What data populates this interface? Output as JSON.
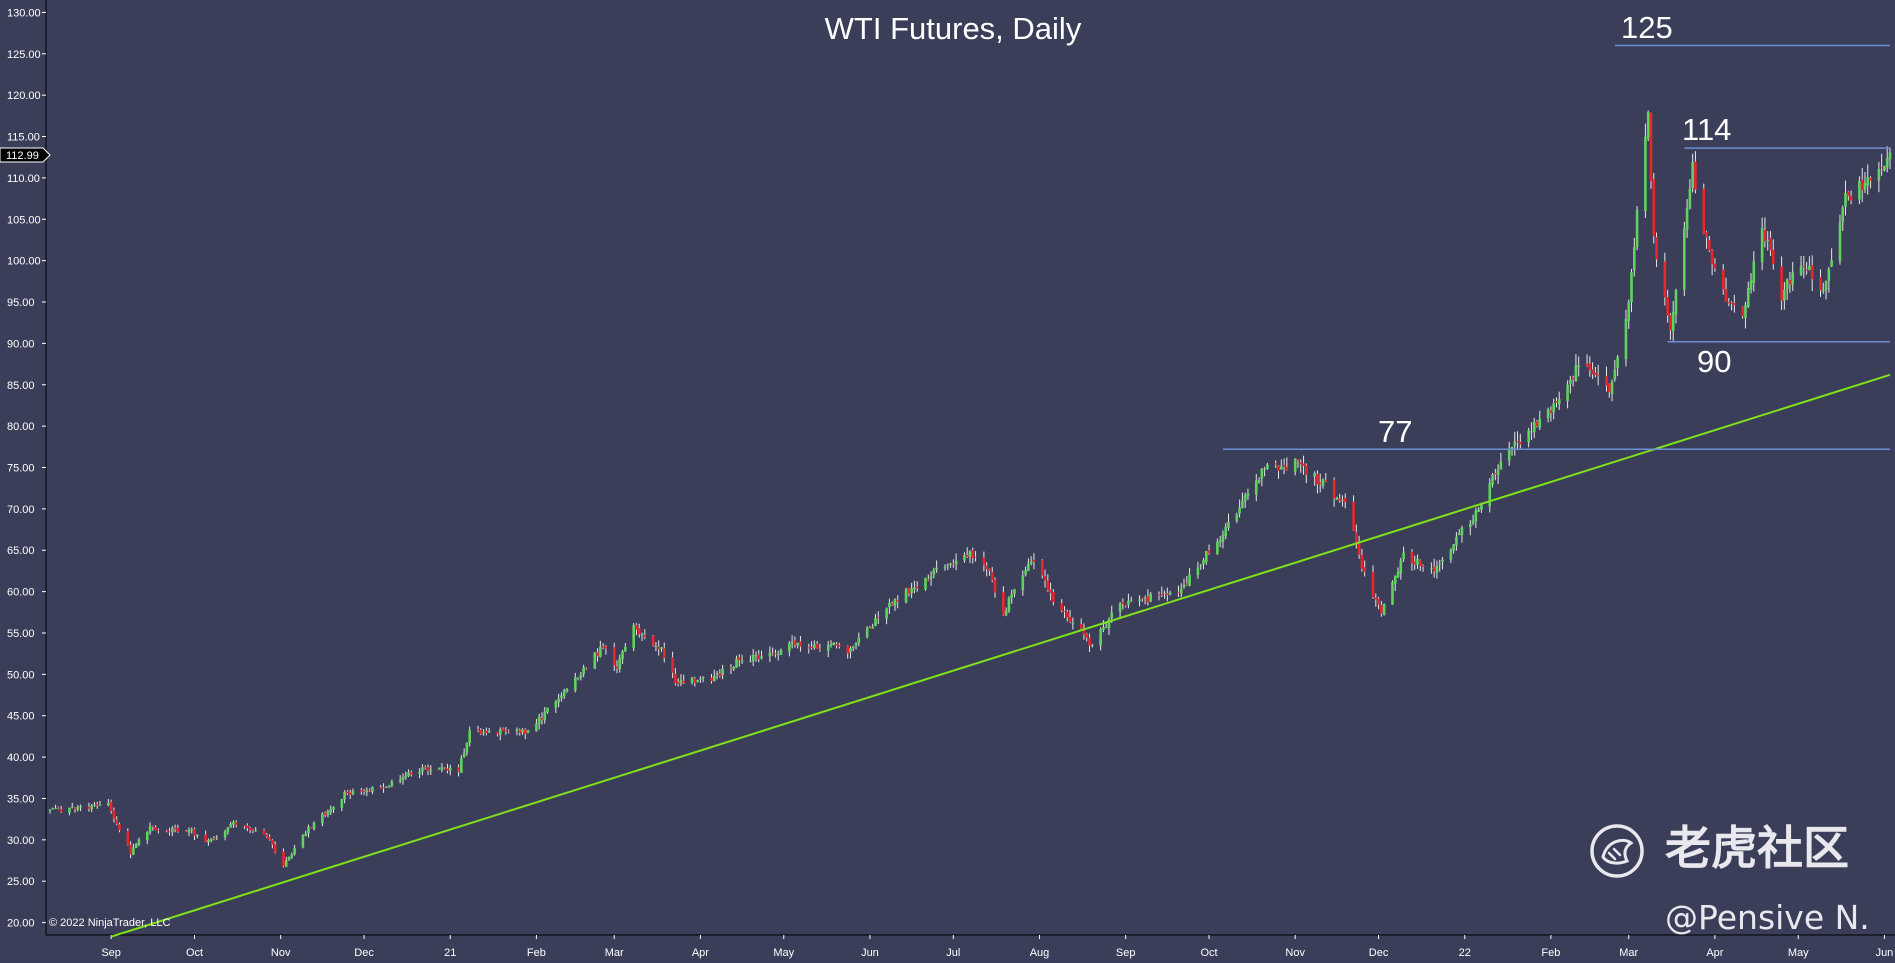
{
  "chart_data": {
    "type": "candlestick",
    "title": "WTI Futures, Daily",
    "ylim": [
      18.5,
      131.5
    ],
    "y_ticks": [
      "20.00",
      "25.00",
      "30.00",
      "35.00",
      "40.00",
      "45.00",
      "50.00",
      "55.00",
      "60.00",
      "65.00",
      "70.00",
      "75.00",
      "80.00",
      "85.00",
      "90.00",
      "95.00",
      "100.00",
      "105.00",
      "110.00",
      "115.00",
      "120.00",
      "125.00",
      "130.00"
    ],
    "x_ticks": [
      "Sep",
      "Oct",
      "Nov",
      "Dec",
      "21",
      "Feb",
      "Mar",
      "Apr",
      "May",
      "Jun",
      "Jul",
      "Aug",
      "Sep",
      "Oct",
      "Nov",
      "Dec",
      "22",
      "Feb",
      "Mar",
      "Apr",
      "May",
      "Jun"
    ],
    "x_range": [
      "2020-08-10",
      "2022-06-03"
    ],
    "last_price_label": "112.99",
    "colors": {
      "background": "#3b3e58",
      "up": "#5ed45e",
      "down": "#e8262c",
      "level_line": "#6b8fd6",
      "trendline": "#7ee21a",
      "text": "#ffffff"
    },
    "levels": [
      {
        "label": "125",
        "value": 126.0,
        "from": "2022-02-24",
        "to": "2022-06-03"
      },
      {
        "label": "114",
        "value": 113.6,
        "from": "2022-03-21",
        "to": "2022-06-03"
      },
      {
        "label": "90",
        "value": 90.2,
        "from": "2022-03-15",
        "to": "2022-06-03"
      },
      {
        "label": "77",
        "value": 77.2,
        "from": "2021-10-06",
        "to": "2022-06-03"
      }
    ],
    "trendline": {
      "start": {
        "date": "2020-09-01",
        "value": 18.3
      },
      "end": {
        "date": "2022-06-03",
        "value": 86.2
      }
    },
    "anchors": [
      [
        "2020-08-10",
        33.5
      ],
      [
        "2020-08-31",
        34.3
      ],
      [
        "2020-09-08",
        28.5
      ],
      [
        "2020-09-15",
        31.5
      ],
      [
        "2020-09-30",
        31.0
      ],
      [
        "2020-10-05",
        29.5
      ],
      [
        "2020-10-15",
        32.0
      ],
      [
        "2020-10-27",
        30.5
      ],
      [
        "2020-11-02",
        26.8
      ],
      [
        "2020-11-10",
        31.0
      ],
      [
        "2020-11-24",
        35.5
      ],
      [
        "2020-12-08",
        36.5
      ],
      [
        "2020-12-21",
        38.5
      ],
      [
        "2021-01-04",
        38.5
      ],
      [
        "2021-01-08",
        43.0
      ],
      [
        "2021-01-29",
        43.0
      ],
      [
        "2021-02-10",
        47.5
      ],
      [
        "2021-02-25",
        53.5
      ],
      [
        "2021-03-02",
        51.0
      ],
      [
        "2021-03-08",
        55.5
      ],
      [
        "2021-03-18",
        53.0
      ],
      [
        "2021-03-23",
        49.0
      ],
      [
        "2021-04-05",
        49.5
      ],
      [
        "2021-04-14",
        51.5
      ],
      [
        "2021-04-27",
        52.5
      ],
      [
        "2021-05-04",
        53.5
      ],
      [
        "2021-05-19",
        53.5
      ],
      [
        "2021-05-24",
        53.0
      ],
      [
        "2021-06-10",
        59.0
      ],
      [
        "2021-06-30",
        63.5
      ],
      [
        "2021-07-07",
        64.5
      ],
      [
        "2021-07-13",
        63.0
      ],
      [
        "2021-07-19",
        57.5
      ],
      [
        "2021-07-29",
        64.0
      ],
      [
        "2021-08-06",
        59.0
      ],
      [
        "2021-08-20",
        53.5
      ],
      [
        "2021-08-30",
        58.5
      ],
      [
        "2021-09-20",
        60.0
      ],
      [
        "2021-10-06",
        67.0
      ],
      [
        "2021-10-21",
        75.0
      ],
      [
        "2021-11-02",
        75.5
      ],
      [
        "2021-11-11",
        73.0
      ],
      [
        "2021-11-19",
        70.5
      ],
      [
        "2021-11-26",
        62.0
      ],
      [
        "2021-12-02",
        57.5
      ],
      [
        "2021-12-10",
        64.5
      ],
      [
        "2021-12-20",
        62.5
      ],
      [
        "2022-01-04",
        69.0
      ],
      [
        "2022-01-14",
        76.0
      ],
      [
        "2022-01-31",
        81.5
      ],
      [
        "2022-02-11",
        87.5
      ],
      [
        "2022-02-22",
        84.5
      ],
      [
        "2022-03-01",
        95.0
      ],
      [
        "2022-03-04",
        106.0
      ],
      [
        "2022-03-08",
        118.0
      ],
      [
        "2022-03-10",
        103.0
      ],
      [
        "2022-03-16",
        91.0
      ],
      [
        "2022-03-24",
        111.0
      ],
      [
        "2022-03-31",
        99.0
      ],
      [
        "2022-04-06",
        95.0
      ],
      [
        "2022-04-11",
        93.0
      ],
      [
        "2022-04-18",
        104.0
      ],
      [
        "2022-04-25",
        96.0
      ],
      [
        "2022-05-03",
        100.0
      ],
      [
        "2022-05-10",
        96.0
      ],
      [
        "2022-05-17",
        107.0
      ],
      [
        "2022-05-23",
        109.0
      ],
      [
        "2022-05-31",
        112.0
      ],
      [
        "2022-06-03",
        112.99
      ]
    ],
    "annotations": [
      "125",
      "114",
      "90",
      "77"
    ],
    "copyright": "© 2022 NinjaTrader, LLC"
  },
  "watermark": {
    "brand_text": "老虎社区",
    "handle": "@Pensive N.",
    "logo_icon": "tiger-logo-icon"
  }
}
